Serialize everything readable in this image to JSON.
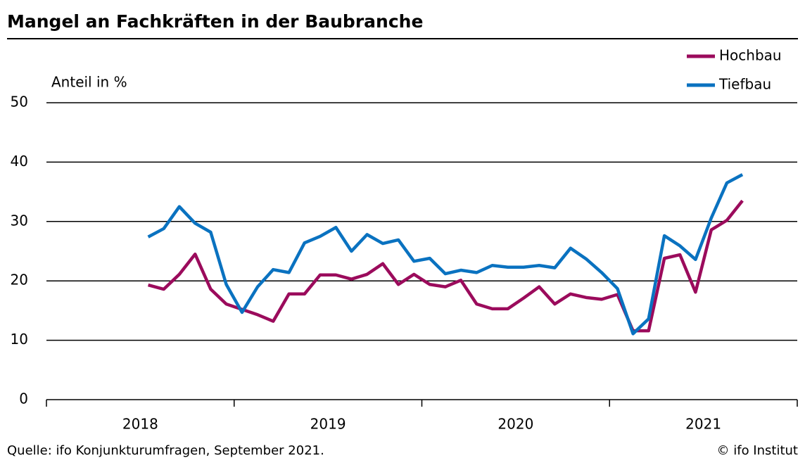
{
  "chart_data": {
    "type": "line",
    "title": "Mangel an Fachkräften in der Baubranche",
    "y_label": "Anteil in %",
    "source": "Quelle: ifo Konjunkturumfragen, September 2021.",
    "credit": "© ifo Institut",
    "x": [
      2018.542,
      2018.625,
      2018.708,
      2018.792,
      2018.875,
      2018.958,
      2019.042,
      2019.125,
      2019.208,
      2019.292,
      2019.375,
      2019.458,
      2019.542,
      2019.625,
      2019.708,
      2019.792,
      2019.875,
      2019.958,
      2020.042,
      2020.125,
      2020.208,
      2020.292,
      2020.375,
      2020.458,
      2020.542,
      2020.625,
      2020.708,
      2020.792,
      2020.875,
      2020.958,
      2021.042,
      2021.125,
      2021.208,
      2021.292,
      2021.375,
      2021.458,
      2021.542,
      2021.625,
      2021.708
    ],
    "series": [
      {
        "name": "Hochbau",
        "color": "#9b0b5c",
        "values": [
          19.3,
          18.6,
          21.1,
          24.5,
          18.6,
          16.1,
          15.2,
          14.3,
          13.2,
          17.8,
          17.8,
          21.0,
          21.0,
          20.3,
          21.1,
          22.9,
          19.4,
          21.1,
          19.4,
          19.0,
          20.1,
          16.1,
          15.3,
          15.3,
          17.1,
          19.0,
          16.1,
          17.8,
          17.2,
          16.9,
          17.7,
          11.6,
          11.6,
          23.8,
          24.4,
          18.1,
          28.6,
          30.2,
          33.5
        ]
      },
      {
        "name": "Tiefbau",
        "color": "#0a72c0",
        "values": [
          27.4,
          28.8,
          32.5,
          29.7,
          28.2,
          19.4,
          14.7,
          19.0,
          21.9,
          21.4,
          26.4,
          27.5,
          29.0,
          25.0,
          27.8,
          26.3,
          26.9,
          23.3,
          23.8,
          21.2,
          21.8,
          21.4,
          22.6,
          22.3,
          22.3,
          22.6,
          22.2,
          25.5,
          23.7,
          21.4,
          18.7,
          11.1,
          13.6,
          27.6,
          25.9,
          23.6,
          30.6,
          36.5,
          37.9
        ]
      }
    ],
    "xlim": [
      2018,
      2022
    ],
    "xticks": [
      2018,
      2019,
      2020,
      2021,
      2022
    ],
    "x_labels": [
      "2018",
      "2019",
      "2020",
      "2021"
    ],
    "ylim": [
      0,
      50
    ],
    "yticks": [
      0,
      10,
      20,
      30,
      40,
      50
    ],
    "grid": true,
    "legend": "top-right"
  }
}
